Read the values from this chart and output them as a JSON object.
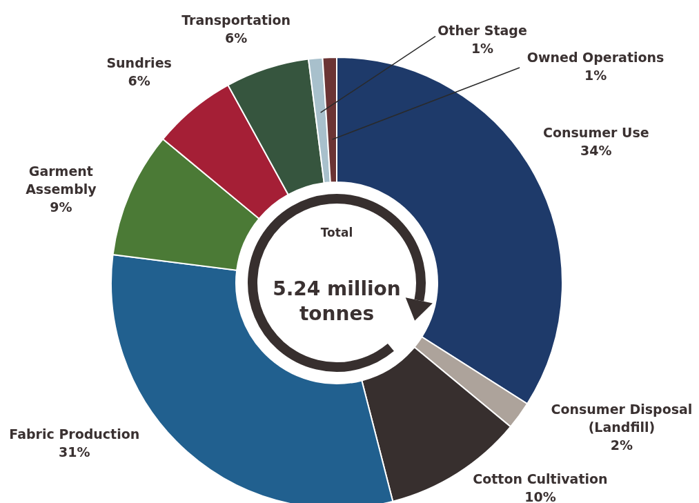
{
  "chart_data": {
    "type": "donut",
    "categories": [
      "Consumer Use",
      "Consumer Disposal\n(Landfill)",
      "Cotton Cultivation",
      "Fabric Production",
      "Garment\nAssembly",
      "Sundries",
      "Transportation",
      "Other Stage",
      "Owned Operations"
    ],
    "values": [
      34,
      2,
      10,
      31,
      9,
      6,
      6,
      1,
      1
    ],
    "value_labels": [
      "34%",
      "2%",
      "10%",
      "31%",
      "9%",
      "6%",
      "6%",
      "1%",
      "1%"
    ],
    "colors": [
      "#1e3a6a",
      "#ada39b",
      "#372f2e",
      "#21608f",
      "#4b7a36",
      "#a51f36",
      "#36553e",
      "#a8c0cc",
      "#6b3434"
    ],
    "annotations": [
      "Total",
      "5.24 million tonnes"
    ],
    "legend": false
  }
}
